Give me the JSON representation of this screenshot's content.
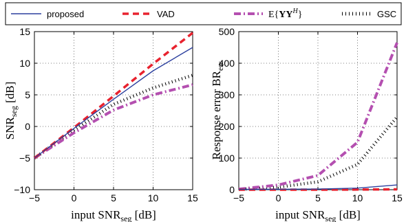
{
  "legend": {
    "entries": [
      {
        "label": "proposed",
        "color": "#2b3f9e",
        "style": "solid"
      },
      {
        "label": "VAD",
        "color": "#e8222e",
        "style": "dashed"
      },
      {
        "label": "E{YY^H}",
        "color": "#b44fb0",
        "style": "dashdot"
      },
      {
        "label": "GSC",
        "color": "#000000",
        "style": "dotted"
      }
    ],
    "placement": "top"
  },
  "chart_data": [
    {
      "type": "line",
      "xlabel": "input SNR_seg [dB]",
      "ylabel": "SNR_seg [dB]",
      "xlim": [
        -5,
        15
      ],
      "ylim": [
        -10,
        15
      ],
      "xticks": [
        -5,
        0,
        5,
        10,
        15
      ],
      "yticks": [
        -10,
        -5,
        0,
        5,
        10,
        15
      ],
      "grid": true,
      "x": [
        -5,
        0,
        5,
        10,
        15
      ],
      "series": [
        {
          "name": "proposed",
          "values": [
            -5,
            -0.3,
            4.3,
            8.8,
            12.5
          ]
        },
        {
          "name": "VAD",
          "values": [
            -5,
            -0.2,
            4.8,
            9.9,
            14.8
          ]
        },
        {
          "name": "E{YY^H}",
          "values": [
            -5,
            -1.0,
            2.6,
            5.0,
            6.6
          ]
        },
        {
          "name": "GSC",
          "values": [
            -5,
            -0.6,
            3.5,
            6.1,
            8.1
          ]
        }
      ]
    },
    {
      "type": "line",
      "xlabel": "input SNR_seg [dB]",
      "ylabel": "Response error BR_err",
      "xlim": [
        -5,
        15
      ],
      "ylim": [
        0,
        500
      ],
      "xticks": [
        -5,
        0,
        5,
        10,
        15
      ],
      "yticks": [
        0,
        100,
        200,
        300,
        400,
        500
      ],
      "grid": true,
      "x": [
        -5,
        0,
        5,
        10,
        15
      ],
      "series": [
        {
          "name": "proposed",
          "values": [
            1,
            1.5,
            2,
            5,
            15
          ]
        },
        {
          "name": "VAD",
          "values": [
            0,
            0,
            0,
            0.5,
            1
          ]
        },
        {
          "name": "E{YY^H}",
          "values": [
            2,
            15,
            45,
            150,
            465
          ]
        },
        {
          "name": "GSC",
          "values": [
            1,
            8,
            25,
            80,
            230
          ]
        }
      ]
    }
  ]
}
